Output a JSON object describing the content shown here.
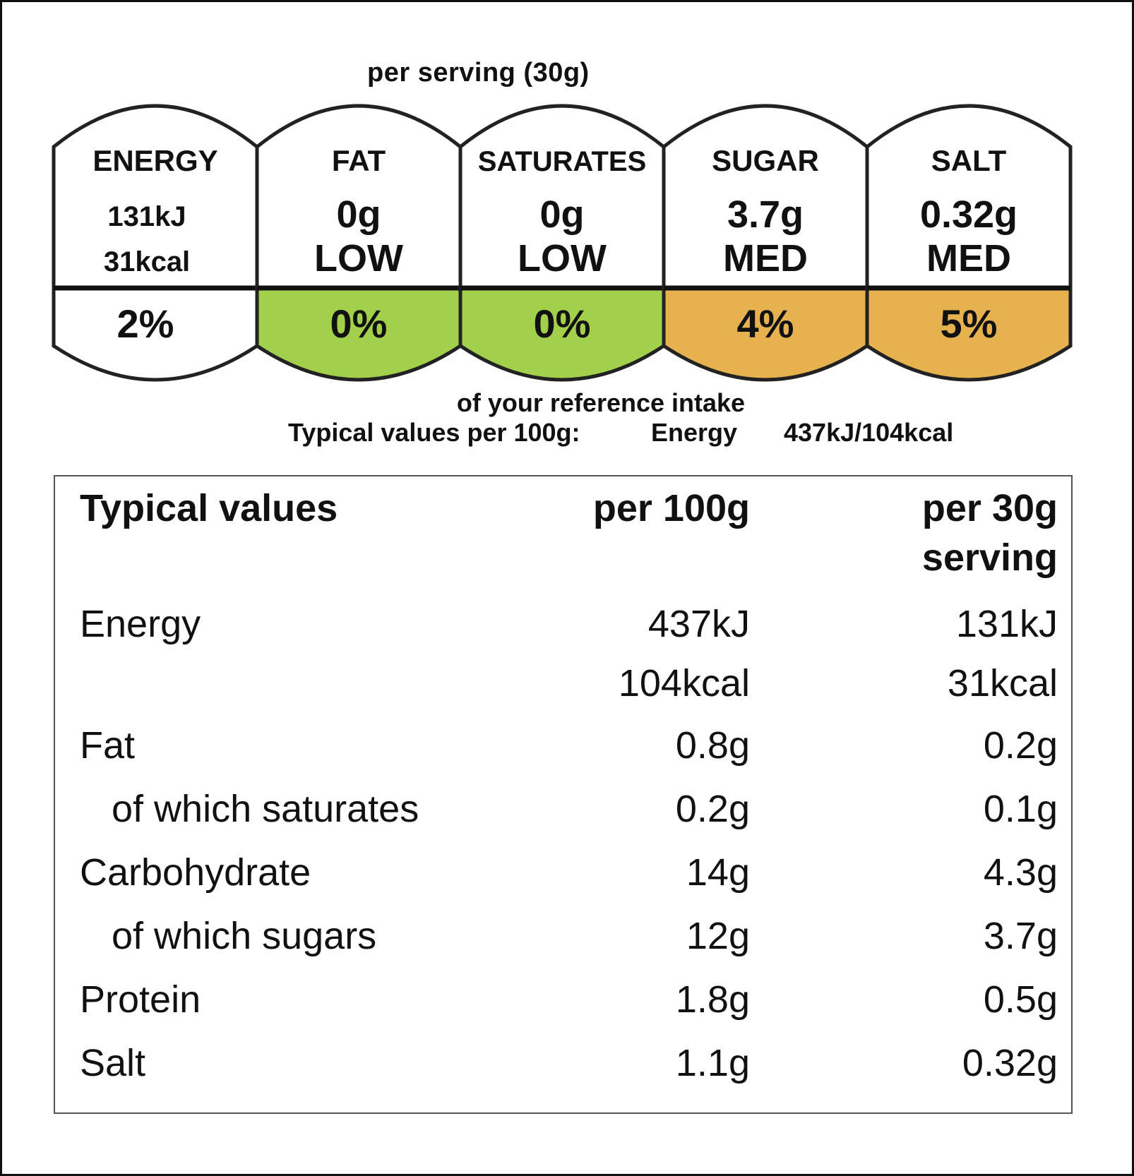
{
  "header": {
    "per_serving": "per serving (30g)"
  },
  "front_of_pack": {
    "cells": [
      {
        "name": "ENERGY",
        "line1": "131kJ",
        "line2": "31kcal",
        "percent": "2%",
        "fill": "#ffffff",
        "style": "energy"
      },
      {
        "name": "FAT",
        "line1": "0g",
        "line2": "LOW",
        "percent": "0%",
        "fill": "#a3d04a",
        "style": "big"
      },
      {
        "name": "SATURATES",
        "line1": "0g",
        "line2": "LOW",
        "percent": "0%",
        "fill": "#a3d04a",
        "style": "big"
      },
      {
        "name": "SUGAR",
        "line1": "3.7g",
        "line2": "MED",
        "percent": "4%",
        "fill": "#e6b14f",
        "style": "big"
      },
      {
        "name": "SALT",
        "line1": "0.32g",
        "line2": "MED",
        "percent": "5%",
        "fill": "#e6b14f",
        "style": "big"
      }
    ],
    "reference_intake": "of your reference intake",
    "typical_label": "Typical values per 100g:",
    "typical_energy_label": "Energy",
    "typical_energy_value": "437kJ/104kcal"
  },
  "table": {
    "headers": {
      "name": "Typical values",
      "per100": "per 100g",
      "serving_line1": "per 30g",
      "serving_line2": "serving"
    },
    "rows": [
      {
        "name": "Energy",
        "per100": "437kJ",
        "serving": "131kJ",
        "indent": false
      },
      {
        "name": "",
        "per100": "104kcal",
        "serving": "31kcal",
        "indent": false
      },
      {
        "name": "Fat",
        "per100": "0.8g",
        "serving": "0.2g",
        "indent": false
      },
      {
        "name": "of which saturates",
        "per100": "0.2g",
        "serving": "0.1g",
        "indent": true
      },
      {
        "name": "Carbohydrate",
        "per100": "14g",
        "serving": "4.3g",
        "indent": false
      },
      {
        "name": "of which sugars",
        "per100": "12g",
        "serving": "3.7g",
        "indent": true
      },
      {
        "name": "Protein",
        "per100": "1.8g",
        "serving": "0.5g",
        "indent": false
      },
      {
        "name": "Salt",
        "per100": "1.1g",
        "serving": "0.32g",
        "indent": false
      }
    ]
  }
}
